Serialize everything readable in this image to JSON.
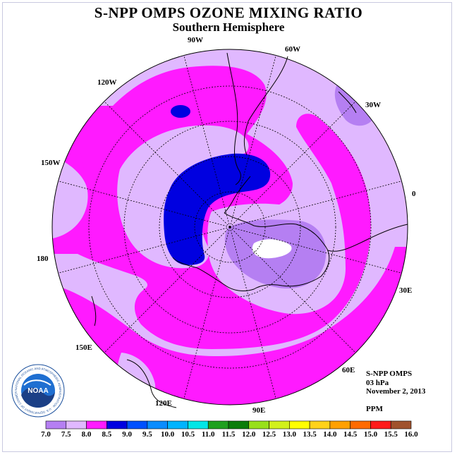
{
  "title": "S-NPP OMPS OZONE MIXING RATIO",
  "subtitle": "Southern Hemisphere",
  "meridians": {
    "lon_90W": "90W",
    "lon_60W": "60W",
    "lon_30W": "30W",
    "lon_0": "0",
    "lon_30E": "30E",
    "lon_60E": "60E",
    "lon_90E": "90E",
    "lon_120E": "120E",
    "lon_150E": "150E",
    "lon_180": "180",
    "lon_150W": "150W",
    "lon_120W": "120W"
  },
  "info": {
    "instrument": "S-NPP OMPS",
    "level": "03 hPa",
    "date": "November 2, 2013",
    "units": "PPM"
  },
  "logo": {
    "text": "NOAA",
    "ring_text": "NATIONAL OCEANIC AND ATMOSPHERIC ADMINISTRATION · U.S. DEPARTMENT OF COMMERCE"
  },
  "colorbar": {
    "ticks": [
      "7.0",
      "7.5",
      "8.0",
      "8.5",
      "9.0",
      "9.5",
      "10.0",
      "10.5",
      "11.0",
      "11.5",
      "12.0",
      "12.5",
      "13.0",
      "13.5",
      "14.0",
      "14.5",
      "15.0",
      "15.5",
      "16.0"
    ],
    "colors": [
      "#b57ff2",
      "#e0b8ff",
      "#ff1aff",
      "#0000e0",
      "#0050ff",
      "#0a8cff",
      "#00b4ff",
      "#00e6e6",
      "#1fa01f",
      "#0a7d0a",
      "#98e01a",
      "#d2f01a",
      "#ffff00",
      "#ffd21a",
      "#ffa000",
      "#ff6a00",
      "#ff1a1a",
      "#a0522d"
    ]
  },
  "legend_levels": {
    "lightest": "#e0b8ff",
    "light": "#b57ff2",
    "magenta": "#ff1aff",
    "blue": "#0000e0",
    "white": "#ffffff"
  }
}
